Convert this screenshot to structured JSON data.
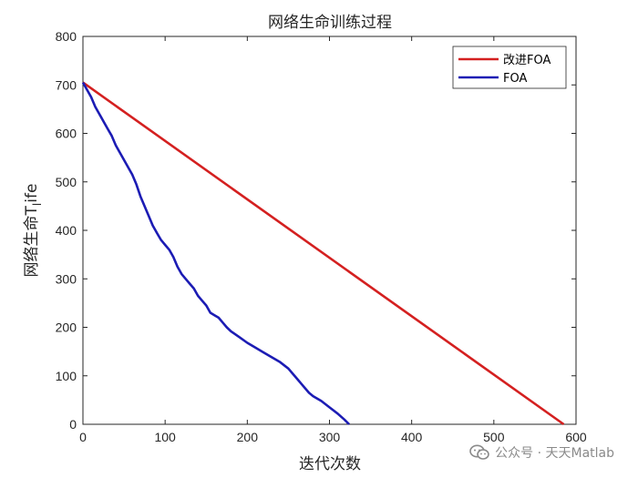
{
  "chart_data": {
    "type": "line",
    "title": "网络生命训练过程",
    "xlabel": "迭代次数",
    "ylabel": "网络生命T",
    "ylabel_subscript": "l",
    "ylabel_suffix": "ife",
    "xlim": [
      0,
      600
    ],
    "ylim": [
      0,
      800
    ],
    "xticks": [
      0,
      100,
      200,
      300,
      400,
      500,
      600
    ],
    "yticks": [
      0,
      100,
      200,
      300,
      400,
      500,
      600,
      700,
      800
    ],
    "grid": false,
    "legend_position": "top-right",
    "series": [
      {
        "name": "改进FOA",
        "color": "#d42020",
        "points": [
          [
            0,
            705
          ],
          [
            585,
            0
          ]
        ]
      },
      {
        "name": "FOA",
        "color": "#1c1cb4",
        "points": [
          [
            0,
            705
          ],
          [
            5,
            690
          ],
          [
            10,
            675
          ],
          [
            15,
            655
          ],
          [
            20,
            640
          ],
          [
            25,
            625
          ],
          [
            30,
            610
          ],
          [
            35,
            595
          ],
          [
            40,
            575
          ],
          [
            45,
            560
          ],
          [
            50,
            545
          ],
          [
            55,
            530
          ],
          [
            60,
            515
          ],
          [
            65,
            495
          ],
          [
            70,
            470
          ],
          [
            75,
            450
          ],
          [
            80,
            430
          ],
          [
            85,
            410
          ],
          [
            90,
            395
          ],
          [
            95,
            380
          ],
          [
            100,
            370
          ],
          [
            105,
            360
          ],
          [
            110,
            345
          ],
          [
            115,
            325
          ],
          [
            120,
            310
          ],
          [
            125,
            300
          ],
          [
            130,
            290
          ],
          [
            135,
            280
          ],
          [
            140,
            265
          ],
          [
            145,
            255
          ],
          [
            150,
            245
          ],
          [
            155,
            230
          ],
          [
            160,
            225
          ],
          [
            165,
            220
          ],
          [
            170,
            210
          ],
          [
            175,
            200
          ],
          [
            180,
            192
          ],
          [
            190,
            180
          ],
          [
            200,
            168
          ],
          [
            210,
            158
          ],
          [
            220,
            148
          ],
          [
            230,
            138
          ],
          [
            240,
            128
          ],
          [
            250,
            115
          ],
          [
            255,
            105
          ],
          [
            260,
            95
          ],
          [
            265,
            85
          ],
          [
            270,
            75
          ],
          [
            275,
            65
          ],
          [
            280,
            58
          ],
          [
            290,
            48
          ],
          [
            300,
            35
          ],
          [
            310,
            22
          ],
          [
            318,
            10
          ],
          [
            324,
            0
          ]
        ]
      }
    ]
  },
  "watermark": {
    "icon": "wechat-icon",
    "text": "公众号 · 天天Matlab"
  }
}
